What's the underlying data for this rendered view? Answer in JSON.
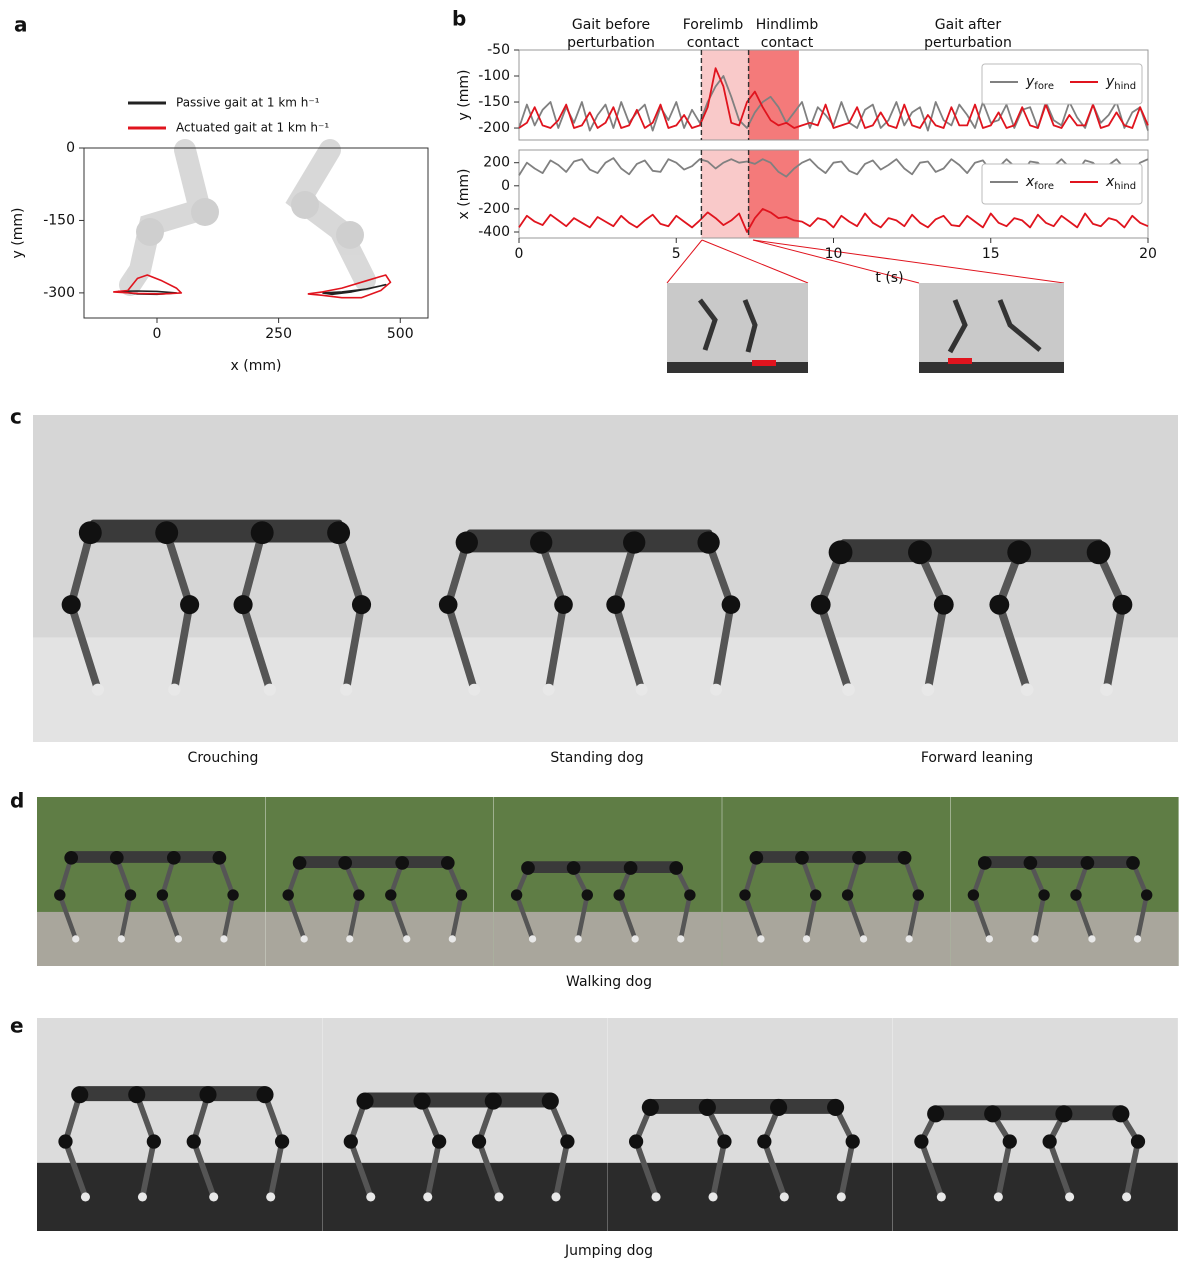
{
  "panel_labels": [
    "a",
    "b",
    "c",
    "d",
    "e"
  ],
  "chart_data": [
    {
      "type": "line",
      "xlabel": "x (mm)",
      "ylabel": "y (mm)",
      "xlim": [
        -150,
        557
      ],
      "ylim": [
        -352,
        0
      ],
      "xticks": [
        0,
        250,
        500
      ],
      "yticks": [
        0,
        -150,
        -300
      ],
      "legend": "top",
      "series": [
        {
          "name": "Passive gait at 1 km h⁻¹",
          "color": "#222222",
          "x": [
            -80,
            -40,
            0,
            40,
            0,
            -40,
            -80,
            null,
            340,
            380,
            430,
            470,
            440,
            400,
            360,
            340
          ],
          "values": [
            -297,
            -296,
            -297,
            -300,
            -303,
            -302,
            -297,
            null,
            -300,
            -298,
            -292,
            -283,
            -290,
            -298,
            -303,
            -300
          ]
        },
        {
          "name": "Actuated gait at 1 km h⁻¹",
          "color": "#e0141e",
          "x": [
            -90,
            -60,
            -40,
            -20,
            10,
            40,
            50,
            10,
            -40,
            -90,
            null,
            310,
            340,
            380,
            430,
            470,
            480,
            460,
            420,
            380,
            340,
            310
          ],
          "values": [
            -298,
            -295,
            -270,
            -263,
            -275,
            -290,
            -300,
            -302,
            -301,
            -298,
            null,
            -302,
            -298,
            -290,
            -275,
            -263,
            -278,
            -295,
            -310,
            -310,
            -305,
            -302
          ]
        }
      ]
    },
    {
      "type": "line",
      "ylabel": "y (mm)",
      "xlim": [
        0,
        20
      ],
      "ylim": [
        -223,
        -50
      ],
      "yticks": [
        -50,
        -100,
        -150,
        -200
      ],
      "legend": "upper right",
      "annotations": [
        [
          "Gait before",
          "perturbation"
        ],
        [
          "Forelimb",
          "contact"
        ],
        [
          "Hindlimb",
          "contact"
        ],
        [
          "Gait after",
          "perturbation"
        ]
      ],
      "spans": [
        {
          "start": 5.8,
          "end": 7.3,
          "color": "#f9c9c9"
        },
        {
          "start": 7.3,
          "end": 8.9,
          "color": "#f47a7a"
        }
      ],
      "x": [
        0,
        0.25,
        0.5,
        0.75,
        1,
        1.25,
        1.5,
        1.75,
        2,
        2.25,
        2.5,
        2.75,
        3,
        3.25,
        3.5,
        3.75,
        4,
        4.25,
        4.5,
        4.75,
        5,
        5.25,
        5.5,
        5.75,
        6,
        6.25,
        6.5,
        6.75,
        7,
        7.25,
        7.5,
        7.75,
        8,
        8.25,
        8.5,
        8.75,
        9,
        9.25,
        9.5,
        9.75,
        10,
        10.25,
        10.5,
        10.75,
        11,
        11.25,
        11.5,
        11.75,
        12,
        12.25,
        12.5,
        12.75,
        13,
        13.25,
        13.5,
        13.75,
        14,
        14.25,
        14.5,
        14.75,
        15,
        15.25,
        15.5,
        15.75,
        16,
        16.25,
        16.5,
        16.75,
        17,
        17.25,
        17.5,
        17.75,
        18,
        18.25,
        18.5,
        18.75,
        19,
        19.25,
        19.5,
        19.75,
        20
      ],
      "series": [
        {
          "name": "yfore",
          "color": "#808080",
          "values": [
            -200,
            -155,
            -195,
            -165,
            -150,
            -200,
            -160,
            -190,
            -150,
            -205,
            -175,
            -155,
            -200,
            -150,
            -190,
            -170,
            -155,
            -205,
            -160,
            -185,
            -150,
            -200,
            -165,
            -190,
            -150,
            -120,
            -100,
            -140,
            -185,
            -200,
            -170,
            -150,
            -140,
            -160,
            -190,
            -170,
            -150,
            -200,
            -160,
            -175,
            -195,
            -150,
            -190,
            -200,
            -165,
            -155,
            -200,
            -185,
            -150,
            -195,
            -170,
            -160,
            -205,
            -150,
            -185,
            -195,
            -155,
            -175,
            -200,
            -150,
            -190,
            -185,
            -155,
            -200,
            -165,
            -160,
            -200,
            -150,
            -185,
            -195,
            -150,
            -180,
            -200,
            -155,
            -190,
            -175,
            -150,
            -200,
            -170,
            -160,
            -205
          ]
        },
        {
          "name": "yhind",
          "color": "#e0141e",
          "values": [
            -200,
            -190,
            -160,
            -195,
            -200,
            -185,
            -155,
            -200,
            -195,
            -170,
            -200,
            -190,
            -160,
            -200,
            -195,
            -165,
            -200,
            -190,
            -155,
            -200,
            -195,
            -175,
            -200,
            -195,
            -160,
            -85,
            -120,
            -190,
            -195,
            -150,
            -130,
            -160,
            -185,
            -195,
            -190,
            -200,
            -195,
            -190,
            -195,
            -155,
            -200,
            -195,
            -190,
            -160,
            -200,
            -195,
            -170,
            -195,
            -200,
            -155,
            -195,
            -200,
            -175,
            -195,
            -200,
            -160,
            -195,
            -195,
            -155,
            -200,
            -195,
            -170,
            -200,
            -195,
            -160,
            -195,
            -200,
            -155,
            -195,
            -200,
            -175,
            -195,
            -195,
            -155,
            -200,
            -195,
            -170,
            -195,
            -200,
            -160,
            -195
          ]
        }
      ]
    },
    {
      "type": "line",
      "xlabel": "t (s)",
      "ylabel": "x (mm)",
      "xlim": [
        0,
        20
      ],
      "ylim": [
        -452,
        310
      ],
      "xticks": [
        0,
        5,
        10,
        15,
        20
      ],
      "yticks": [
        200,
        0,
        -200,
        -400
      ],
      "legend": "upper right",
      "spans": [
        {
          "start": 5.8,
          "end": 7.3,
          "color": "#f9c9c9"
        },
        {
          "start": 7.3,
          "end": 8.9,
          "color": "#f47a7a"
        }
      ],
      "x": [
        0,
        0.25,
        0.5,
        0.75,
        1,
        1.25,
        1.5,
        1.75,
        2,
        2.25,
        2.5,
        2.75,
        3,
        3.25,
        3.5,
        3.75,
        4,
        4.25,
        4.5,
        4.75,
        5,
        5.25,
        5.5,
        5.75,
        6,
        6.25,
        6.5,
        6.75,
        7,
        7.25,
        7.5,
        7.75,
        8,
        8.25,
        8.5,
        8.75,
        9,
        9.25,
        9.5,
        9.75,
        10,
        10.25,
        10.5,
        10.75,
        11,
        11.25,
        11.5,
        11.75,
        12,
        12.25,
        12.5,
        12.75,
        13,
        13.25,
        13.5,
        13.75,
        14,
        14.25,
        14.5,
        14.75,
        15,
        15.25,
        15.5,
        15.75,
        16,
        16.25,
        16.5,
        16.75,
        17,
        17.25,
        17.5,
        17.75,
        18,
        18.25,
        18.5,
        18.75,
        19,
        19.25,
        19.5,
        19.75,
        20
      ],
      "series": [
        {
          "name": "xfore",
          "color": "#808080",
          "values": [
            90,
            200,
            150,
            110,
            220,
            180,
            120,
            210,
            230,
            140,
            110,
            200,
            240,
            150,
            100,
            190,
            220,
            130,
            120,
            230,
            200,
            140,
            170,
            230,
            210,
            150,
            200,
            230,
            200,
            210,
            190,
            230,
            200,
            120,
            80,
            150,
            200,
            230,
            160,
            110,
            200,
            210,
            130,
            100,
            190,
            220,
            140,
            180,
            230,
            150,
            100,
            200,
            210,
            120,
            150,
            230,
            180,
            110,
            200,
            220,
            130,
            160,
            230,
            170,
            110,
            210,
            200,
            120,
            170,
            230,
            160,
            120,
            220,
            200,
            130,
            180,
            230,
            150,
            110,
            200,
            230
          ]
        },
        {
          "name": "xhind",
          "color": "#e0141e",
          "values": [
            -360,
            -260,
            -310,
            -340,
            -250,
            -300,
            -350,
            -280,
            -320,
            -360,
            -270,
            -310,
            -350,
            -260,
            -320,
            -360,
            -300,
            -250,
            -330,
            -350,
            -260,
            -310,
            -360,
            -300,
            -230,
            -280,
            -340,
            -300,
            -240,
            -400,
            -280,
            -200,
            -230,
            -280,
            -270,
            -300,
            -310,
            -350,
            -280,
            -300,
            -360,
            -260,
            -310,
            -350,
            -240,
            -320,
            -360,
            -280,
            -300,
            -350,
            -250,
            -320,
            -360,
            -290,
            -260,
            -340,
            -350,
            -260,
            -310,
            -360,
            -240,
            -320,
            -350,
            -280,
            -300,
            -360,
            -250,
            -320,
            -350,
            -260,
            -310,
            -360,
            -240,
            -330,
            -350,
            -280,
            -300,
            -360,
            -260,
            -320,
            -350
          ]
        }
      ]
    }
  ],
  "panel_c": {
    "captions": [
      "Crouching",
      "Standing dog",
      "Forward leaning"
    ]
  },
  "panel_d": {
    "caption": "Walking dog"
  },
  "panel_e": {
    "caption": "Jumping dog"
  }
}
